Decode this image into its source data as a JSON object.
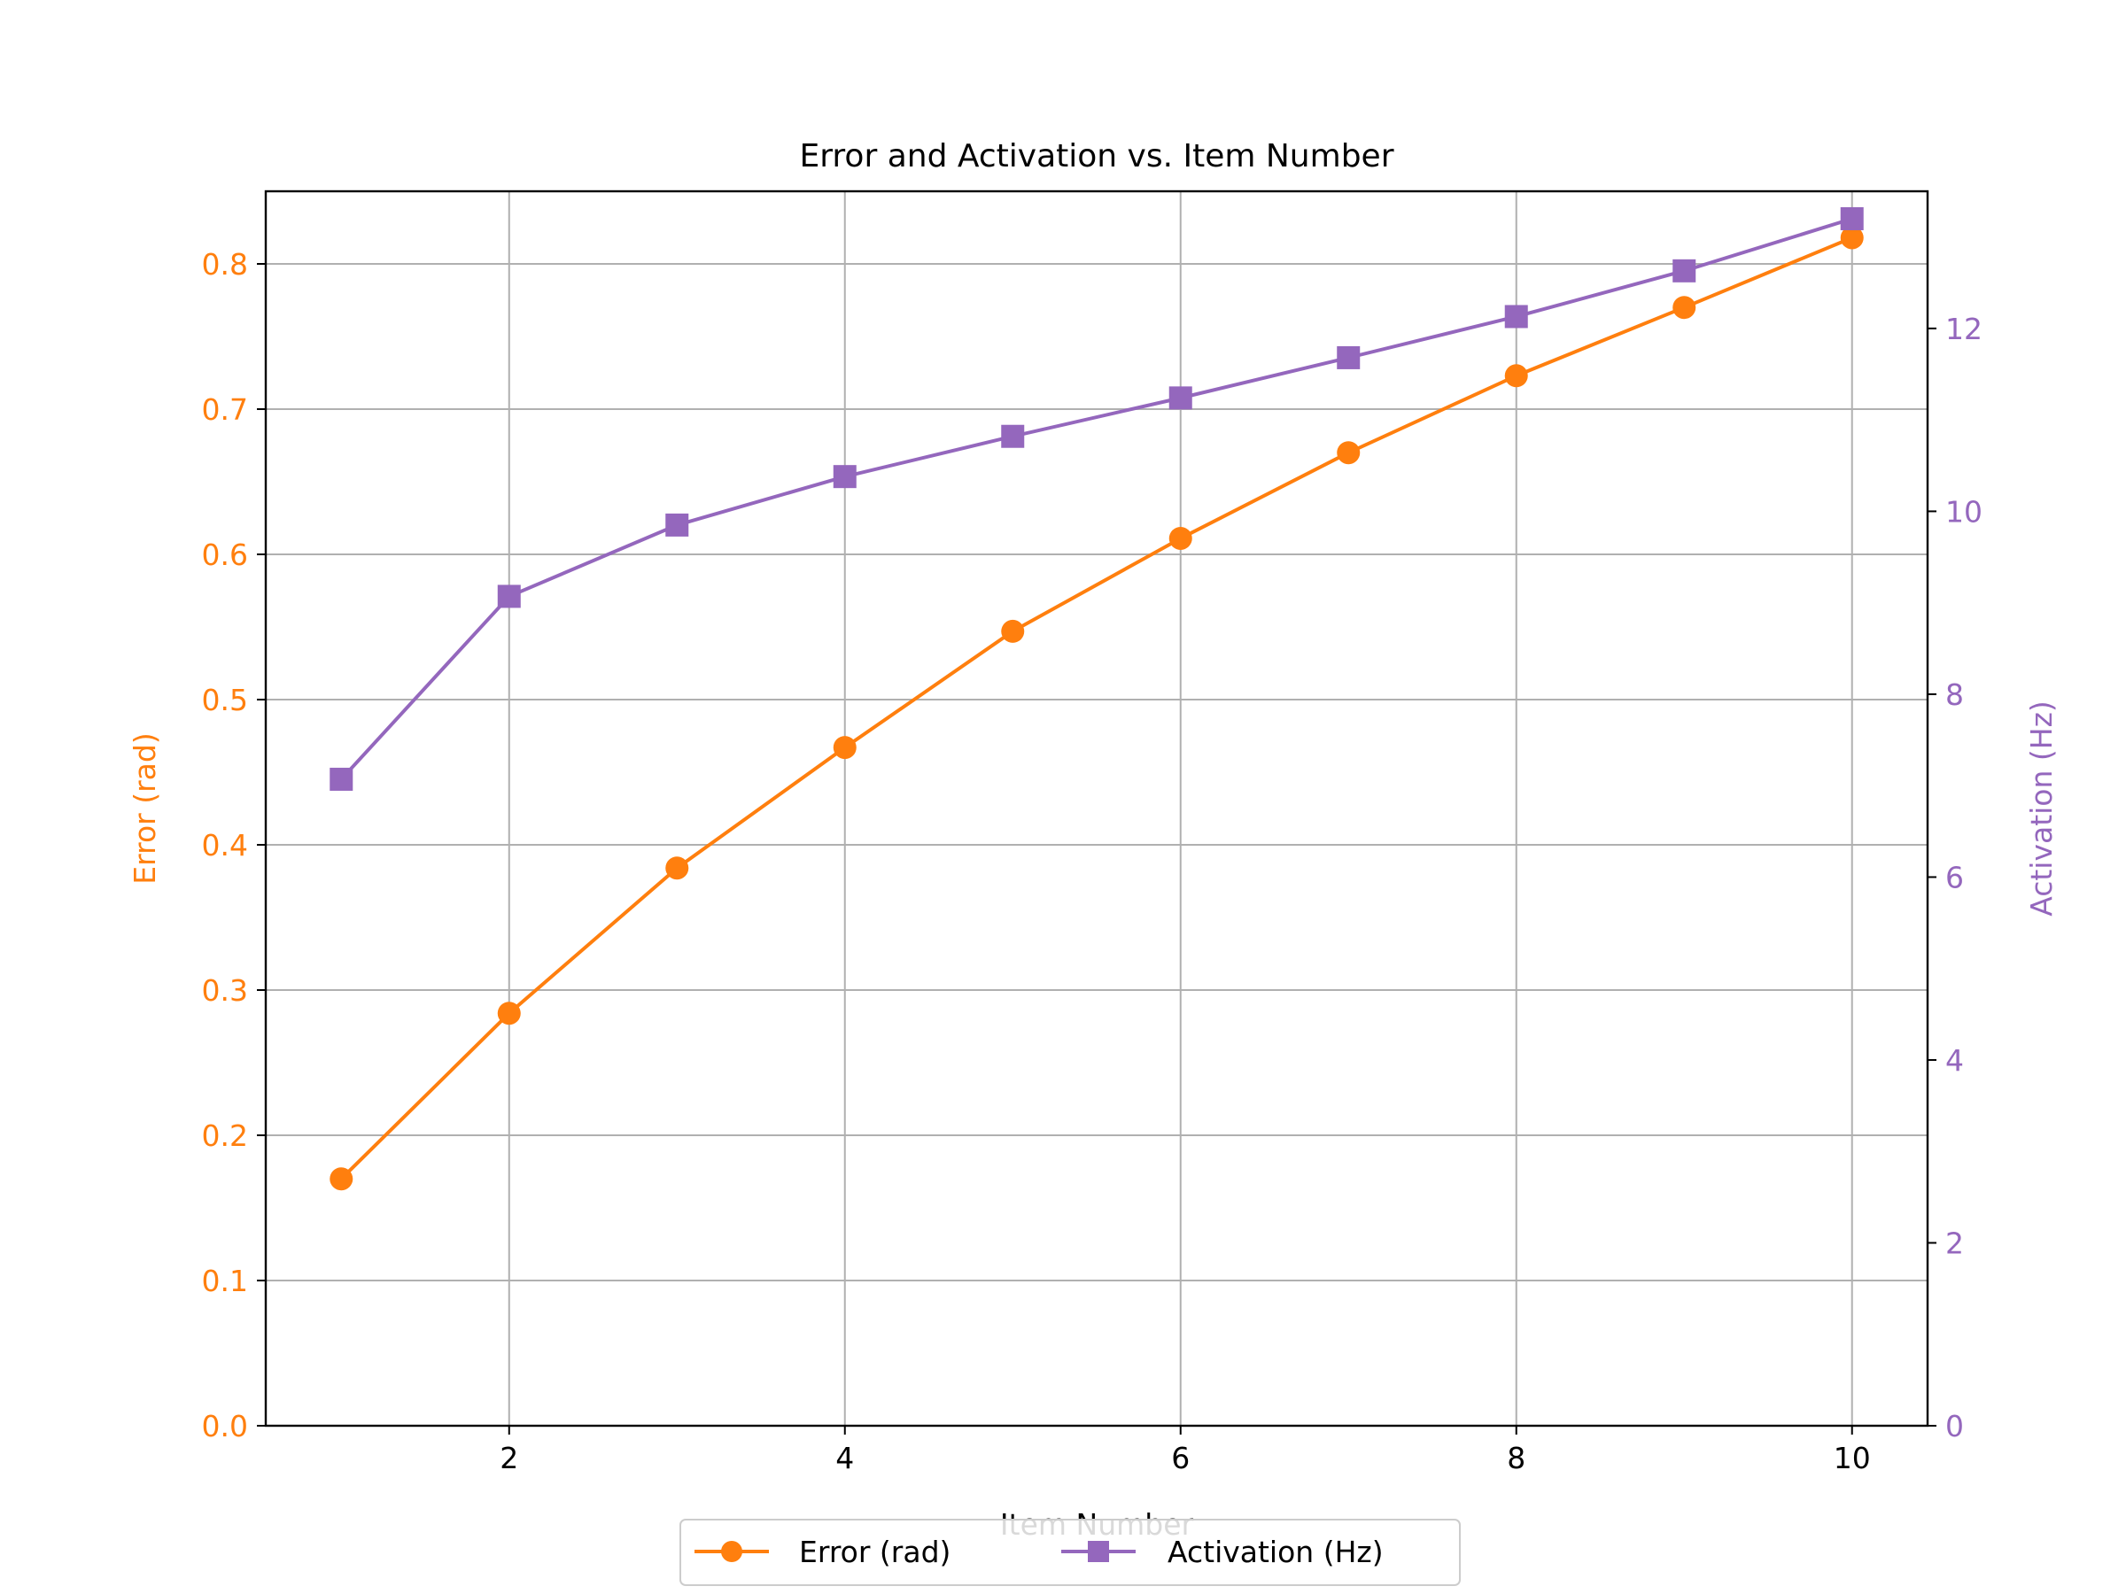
{
  "chart_data": {
    "type": "line",
    "title": "Error and Activation vs. Item Number",
    "xlabel": "Item Number",
    "x": [
      1,
      2,
      3,
      4,
      5,
      6,
      7,
      8,
      9,
      10
    ],
    "xlim": [
      0.55,
      10.45
    ],
    "xticks": [
      2,
      4,
      6,
      8,
      10
    ],
    "grid": true,
    "legend_position": "bottom-center",
    "axes": {
      "left": {
        "label": "Error (rad)",
        "color": "#ff7f0e",
        "ylim": [
          0,
          0.85
        ],
        "ticks": [
          "0.0",
          "0.1",
          "0.2",
          "0.3",
          "0.4",
          "0.5",
          "0.6",
          "0.7",
          "0.8"
        ]
      },
      "right": {
        "label": "Activation (Hz)",
        "color": "#9467bd",
        "ylim": [
          0,
          13.5
        ],
        "ticks": [
          "0",
          "2",
          "4",
          "6",
          "8",
          "10",
          "12"
        ]
      }
    },
    "series": [
      {
        "name": "Error (rad)",
        "axis": "left",
        "color": "#ff7f0e",
        "marker": "circle",
        "values": [
          0.17,
          0.284,
          0.384,
          0.467,
          0.547,
          0.611,
          0.67,
          0.723,
          0.77,
          0.818
        ]
      },
      {
        "name": "Activation (Hz)",
        "axis": "right",
        "color": "#9467bd",
        "marker": "square",
        "values": [
          7.07,
          9.07,
          9.85,
          10.38,
          10.82,
          11.24,
          11.68,
          12.13,
          12.63,
          13.2
        ]
      }
    ]
  }
}
